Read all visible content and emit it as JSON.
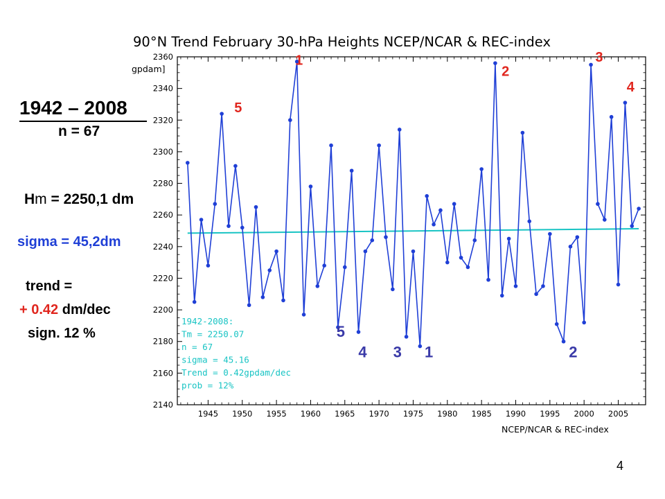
{
  "slide": {
    "period": "1942 – 2008",
    "n": "n = 67",
    "hm_prefix": "H",
    "hm_sub": "m",
    "hm_value": " = 2250,1 dm",
    "sigma": "sigma = 45,2dm",
    "trend_label": "trend =",
    "trend_number": "+ 0.42",
    "trend_unit": " dm/dec",
    "significance": "sign. 12 %",
    "page_number": "4"
  },
  "colors": {
    "series": "#1f3fd6",
    "trend": "#19c4c4",
    "stats": "#19c4c4",
    "rank_high": "#e0261e",
    "rank_low": "#3a3aa8"
  },
  "chart_data": {
    "type": "line",
    "title": "90°N Trend February 30-hPa Heights NCEP/NCAR & REC-index",
    "ylabel": "gpdam]",
    "xlabel": "",
    "source": "NCEP/NCAR & REC-index",
    "xlim": [
      1940.5,
      2009
    ],
    "ylim": [
      2140,
      2360
    ],
    "x_ticks": [
      1945,
      1950,
      1955,
      1960,
      1965,
      1970,
      1975,
      1980,
      1985,
      1990,
      1995,
      2000,
      2005
    ],
    "y_ticks": [
      2140,
      2160,
      2180,
      2200,
      2220,
      2240,
      2260,
      2280,
      2300,
      2320,
      2340,
      2360
    ],
    "grid": false,
    "x": [
      1942,
      1943,
      1944,
      1945,
      1946,
      1947,
      1948,
      1949,
      1950,
      1951,
      1952,
      1953,
      1954,
      1955,
      1956,
      1957,
      1958,
      1959,
      1960,
      1961,
      1962,
      1963,
      1964,
      1965,
      1966,
      1967,
      1968,
      1969,
      1970,
      1971,
      1972,
      1973,
      1974,
      1975,
      1976,
      1977,
      1978,
      1979,
      1980,
      1981,
      1982,
      1983,
      1984,
      1985,
      1986,
      1987,
      1988,
      1989,
      1990,
      1991,
      1992,
      1993,
      1994,
      1995,
      1996,
      1997,
      1998,
      1999,
      2000,
      2001,
      2002,
      2003,
      2004,
      2005,
      2006,
      2007,
      2008
    ],
    "values": [
      2293,
      2205,
      2257,
      2228,
      2267,
      2324,
      2253,
      2291,
      2252,
      2203,
      2265,
      2208,
      2225,
      2237,
      2206,
      2320,
      2357,
      2197,
      2278,
      2215,
      2228,
      2304,
      2189,
      2227,
      2288,
      2186,
      2237,
      2244,
      2304,
      2246,
      2213,
      2314,
      2183,
      2237,
      2177,
      2272,
      2254,
      2263,
      2230,
      2267,
      2233,
      2227,
      2244,
      2289,
      2219,
      2356,
      2209,
      2245,
      2215,
      2312,
      2256,
      2210,
      2215,
      2248,
      2191,
      2180,
      2240,
      2246,
      2192,
      2355,
      2267,
      2257,
      2322,
      2216,
      2331,
      2253,
      2264
    ],
    "trend_line": {
      "x": [
        1942,
        2008
      ],
      "y": [
        2248.5,
        2251.3
      ]
    },
    "stats_box": {
      "lines": [
        "1942-2008:",
        "Tm    = 2250.07",
        "n     = 67",
        "sigma = 45.16",
        "Trend = 0.42gpdam/dec",
        "prob  = 12%"
      ]
    },
    "annotations": [
      {
        "label": "1",
        "x": 1958.3,
        "y": 2355,
        "group": "high"
      },
      {
        "label": "2",
        "x": 1988.5,
        "y": 2348,
        "group": "high"
      },
      {
        "label": "3",
        "x": 2002.2,
        "y": 2357,
        "group": "high"
      },
      {
        "label": "4",
        "x": 2006.8,
        "y": 2338,
        "group": "high"
      },
      {
        "label": "5",
        "x": 1949.4,
        "y": 2325,
        "group": "high"
      },
      {
        "label": "5",
        "x": 1964.4,
        "y": 2183,
        "group": "low"
      },
      {
        "label": "4",
        "x": 1967.6,
        "y": 2170,
        "group": "low"
      },
      {
        "label": "3",
        "x": 1972.7,
        "y": 2170,
        "group": "low"
      },
      {
        "label": "1",
        "x": 1977.3,
        "y": 2170,
        "group": "low"
      },
      {
        "label": "2",
        "x": 1998.4,
        "y": 2170,
        "group": "low"
      }
    ]
  }
}
